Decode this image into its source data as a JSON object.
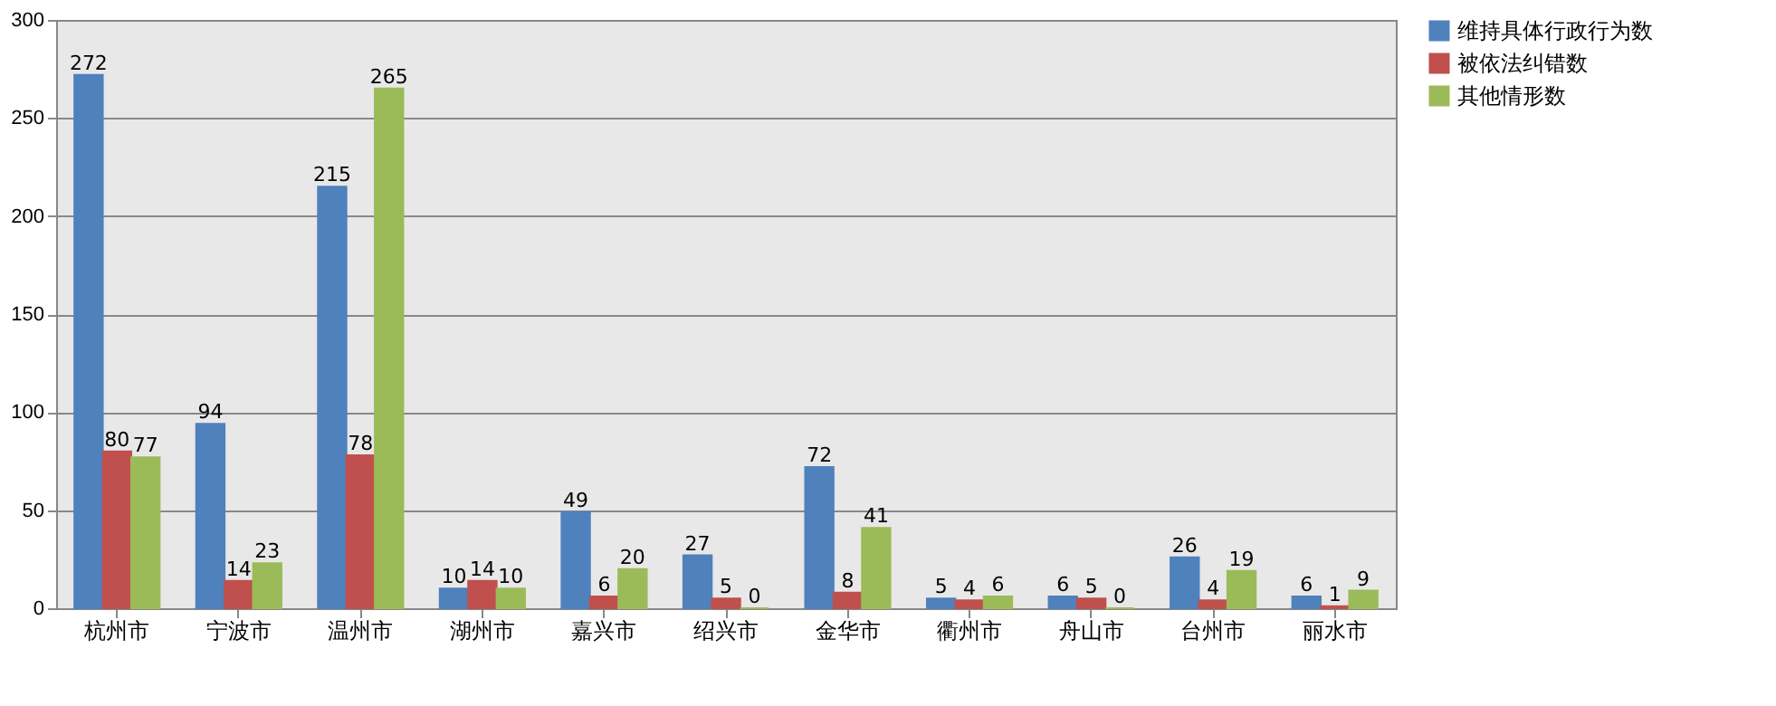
{
  "chart_data": {
    "type": "bar",
    "categories": [
      "杭州市",
      "宁波市",
      "温州市",
      "湖州市",
      "嘉兴市",
      "绍兴市",
      "金华市",
      "衢州市",
      "舟山市",
      "台州市",
      "丽水市"
    ],
    "series": [
      {
        "name": "维持具体行政行为数",
        "color": "#4f81bd",
        "values": [
          272,
          94,
          215,
          10,
          49,
          27,
          72,
          5,
          6,
          26,
          6
        ]
      },
      {
        "name": "被依法纠错数",
        "color": "#c0504d",
        "values": [
          80,
          14,
          78,
          14,
          6,
          5,
          8,
          4,
          5,
          4,
          1
        ]
      },
      {
        "name": "其他情形数",
        "color": "#9bbb59",
        "values": [
          77,
          23,
          265,
          10,
          20,
          0,
          41,
          6,
          0,
          19,
          9
        ]
      }
    ],
    "ylim": [
      0,
      300
    ],
    "yticks": [
      0,
      50,
      100,
      150,
      200,
      250,
      300
    ],
    "grid": "y",
    "legend": "right",
    "data_labels": true
  }
}
